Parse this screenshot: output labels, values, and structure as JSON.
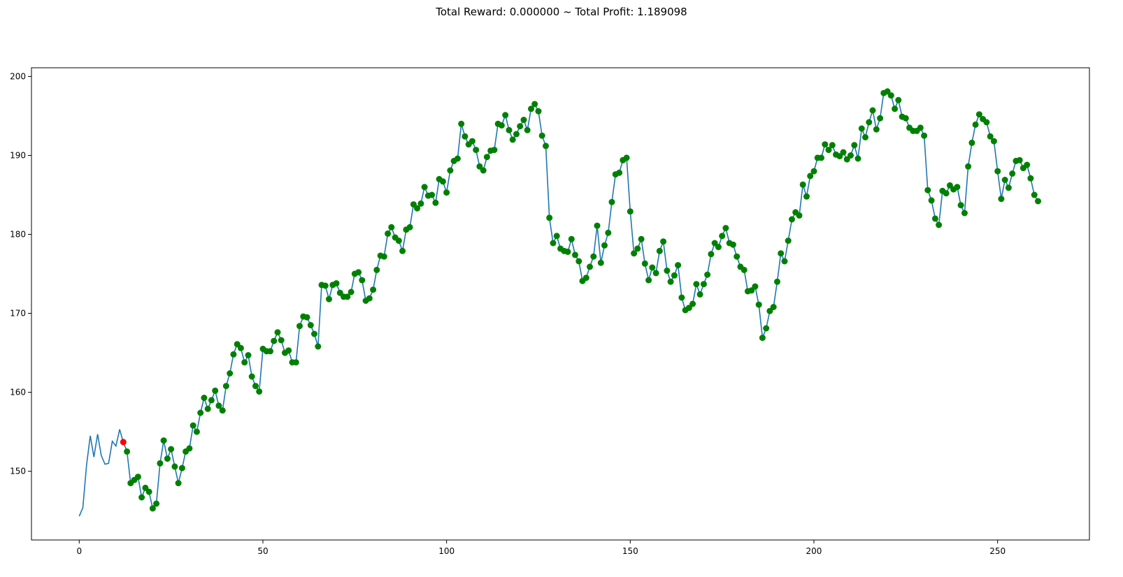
{
  "chart_data": {
    "type": "line",
    "title": "Total Reward: 0.000000 ~ Total Profit: 1.189098",
    "xlabel": "",
    "ylabel": "",
    "xlim": [
      -13,
      275
    ],
    "ylim": [
      141.3,
      201.1
    ],
    "x_ticks": [
      0,
      50,
      100,
      150,
      200,
      250
    ],
    "y_ticks": [
      150,
      160,
      170,
      180,
      190,
      200
    ],
    "grid": false,
    "line_color": "#1f77b4",
    "short_marker_color": "#ff0000",
    "long_marker_color": "#008000",
    "series": [
      {
        "values": [
          144.3,
          145.4,
          150.8,
          154.5,
          151.8,
          154.7,
          152.0,
          150.9,
          151.0,
          153.8,
          153.2,
          155.3,
          153.7,
          152.5,
          148.5,
          148.9,
          149.3,
          146.7,
          147.9,
          147.4,
          145.3,
          145.9,
          151.0,
          153.9,
          151.6,
          152.8,
          150.6,
          148.5,
          150.4,
          152.5,
          152.9,
          155.8,
          155.0,
          157.4,
          159.3,
          157.9,
          159.0,
          160.2,
          158.3,
          157.7,
          160.8,
          162.4,
          164.8,
          166.1,
          165.6,
          163.8,
          164.7,
          162.0,
          160.8,
          160.1,
          165.5,
          165.2,
          165.2,
          166.5,
          167.6,
          166.6,
          165.0,
          165.3,
          163.8,
          163.8,
          168.4,
          169.6,
          169.5,
          168.5,
          167.4,
          165.8,
          173.6,
          173.5,
          171.8,
          173.6,
          173.8,
          172.6,
          172.1,
          172.1,
          172.7,
          175.0,
          175.2,
          174.2,
          171.6,
          171.9,
          173.0,
          175.5,
          177.3,
          177.2,
          180.1,
          180.9,
          179.6,
          179.2,
          177.9,
          180.6,
          180.9,
          183.8,
          183.3,
          183.9,
          186.0,
          184.9,
          185.0,
          184.0,
          187.0,
          186.7,
          185.3,
          188.1,
          189.3,
          189.6,
          194.0,
          192.4,
          191.4,
          191.8,
          190.7,
          188.6,
          188.1,
          189.8,
          190.6,
          190.7,
          194.0,
          193.8,
          195.1,
          193.2,
          192.0,
          192.7,
          193.7,
          194.5,
          193.2,
          195.9,
          196.5,
          195.6,
          192.5,
          191.2,
          182.1,
          178.9,
          179.8,
          178.2,
          177.9,
          177.8,
          179.4,
          177.4,
          176.6,
          174.1,
          174.5,
          175.9,
          177.2,
          181.1,
          176.4,
          178.6,
          180.2,
          184.1,
          187.6,
          187.8,
          189.4,
          189.7,
          182.9,
          177.6,
          178.2,
          179.4,
          176.3,
          174.2,
          175.8,
          175.1,
          177.9,
          179.1,
          175.4,
          174.0,
          174.8,
          176.1,
          172.0,
          170.4,
          170.7,
          171.2,
          173.7,
          172.4,
          173.7,
          174.9,
          177.5,
          178.9,
          178.4,
          179.8,
          180.8,
          178.9,
          178.7,
          177.2,
          175.9,
          175.5,
          172.8,
          172.9,
          173.4,
          171.1,
          166.9,
          168.1,
          170.3,
          170.8,
          174.0,
          177.6,
          176.6,
          179.2,
          181.9,
          182.8,
          182.4,
          186.3,
          184.8,
          187.4,
          188.0,
          189.7,
          189.7,
          191.4,
          190.7,
          191.3,
          190.1,
          189.9,
          190.4,
          189.5,
          190.0,
          191.3,
          189.6,
          193.4,
          192.3,
          194.2,
          195.7,
          193.3,
          194.7,
          197.9,
          198.1,
          197.6,
          195.9,
          197.0,
          194.9,
          194.7,
          193.5,
          193.1,
          193.1,
          193.5,
          192.5,
          185.6,
          184.3,
          182.0,
          181.2,
          185.5,
          185.2,
          186.2,
          185.7,
          186.0,
          183.7,
          182.7,
          188.6,
          191.6,
          193.9,
          195.2,
          194.6,
          194.2,
          192.4,
          191.8,
          188.0,
          184.5,
          186.9,
          185.9,
          187.7,
          189.3,
          189.4,
          188.4,
          188.8,
          187.1,
          185.0,
          184.2
        ]
      }
    ],
    "short_marker_indices": [
      12
    ],
    "long_marker_start_index": 13
  }
}
